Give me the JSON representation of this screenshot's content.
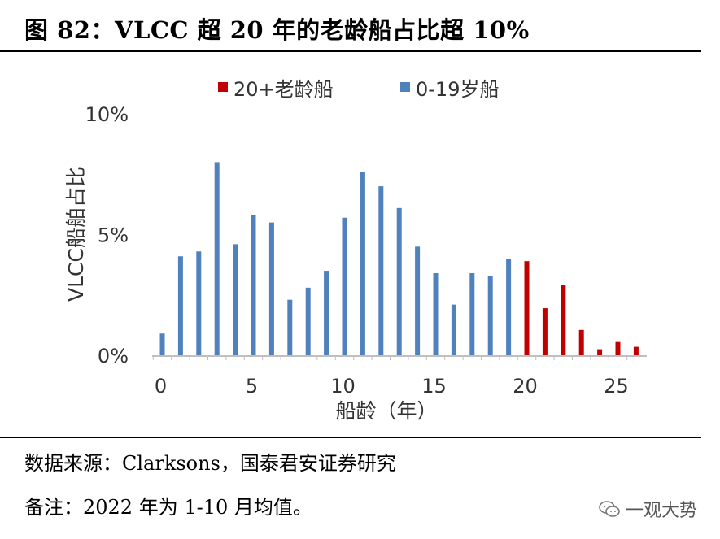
{
  "title": "图 82：VLCC 超 20 年的老龄船占比超 10%",
  "source_note": "数据来源：Clarksons，国泰君安证券研究",
  "memo_note": "备注：2022 年为 1-10 月均值。",
  "watermark": "一观大势",
  "colors": {
    "old": "#C00000",
    "young": "#4F81BD",
    "axis": "#BFBFBF",
    "text": "#595959"
  },
  "chart_data": {
    "type": "bar",
    "title": "",
    "xlabel": "船龄（年）",
    "ylabel": "VLCC船舶占比",
    "xlim": [
      0,
      26
    ],
    "ylim": [
      0,
      10
    ],
    "x_ticks": [
      "0",
      "5",
      "10",
      "15",
      "20",
      "25"
    ],
    "y_ticks": [
      "0%",
      "5%",
      "10%"
    ],
    "legend_position": "top",
    "series": [
      {
        "name": "0-19岁船",
        "color": "#4F81BD",
        "x": [
          0,
          1,
          2,
          3,
          4,
          5,
          6,
          7,
          8,
          9,
          10,
          11,
          12,
          13,
          14,
          15,
          16,
          17,
          18,
          19
        ],
        "values": [
          0.9,
          4.1,
          4.3,
          8.0,
          4.6,
          5.8,
          5.5,
          2.3,
          2.8,
          3.5,
          5.7,
          7.6,
          7.0,
          6.1,
          4.5,
          3.4,
          2.1,
          3.4,
          3.3,
          4.0
        ]
      },
      {
        "name": "20+老龄船",
        "color": "#C00000",
        "x": [
          20,
          21,
          22,
          23,
          24,
          25,
          26
        ],
        "values": [
          3.9,
          1.95,
          2.9,
          1.05,
          0.25,
          0.55,
          0.35
        ]
      }
    ]
  }
}
